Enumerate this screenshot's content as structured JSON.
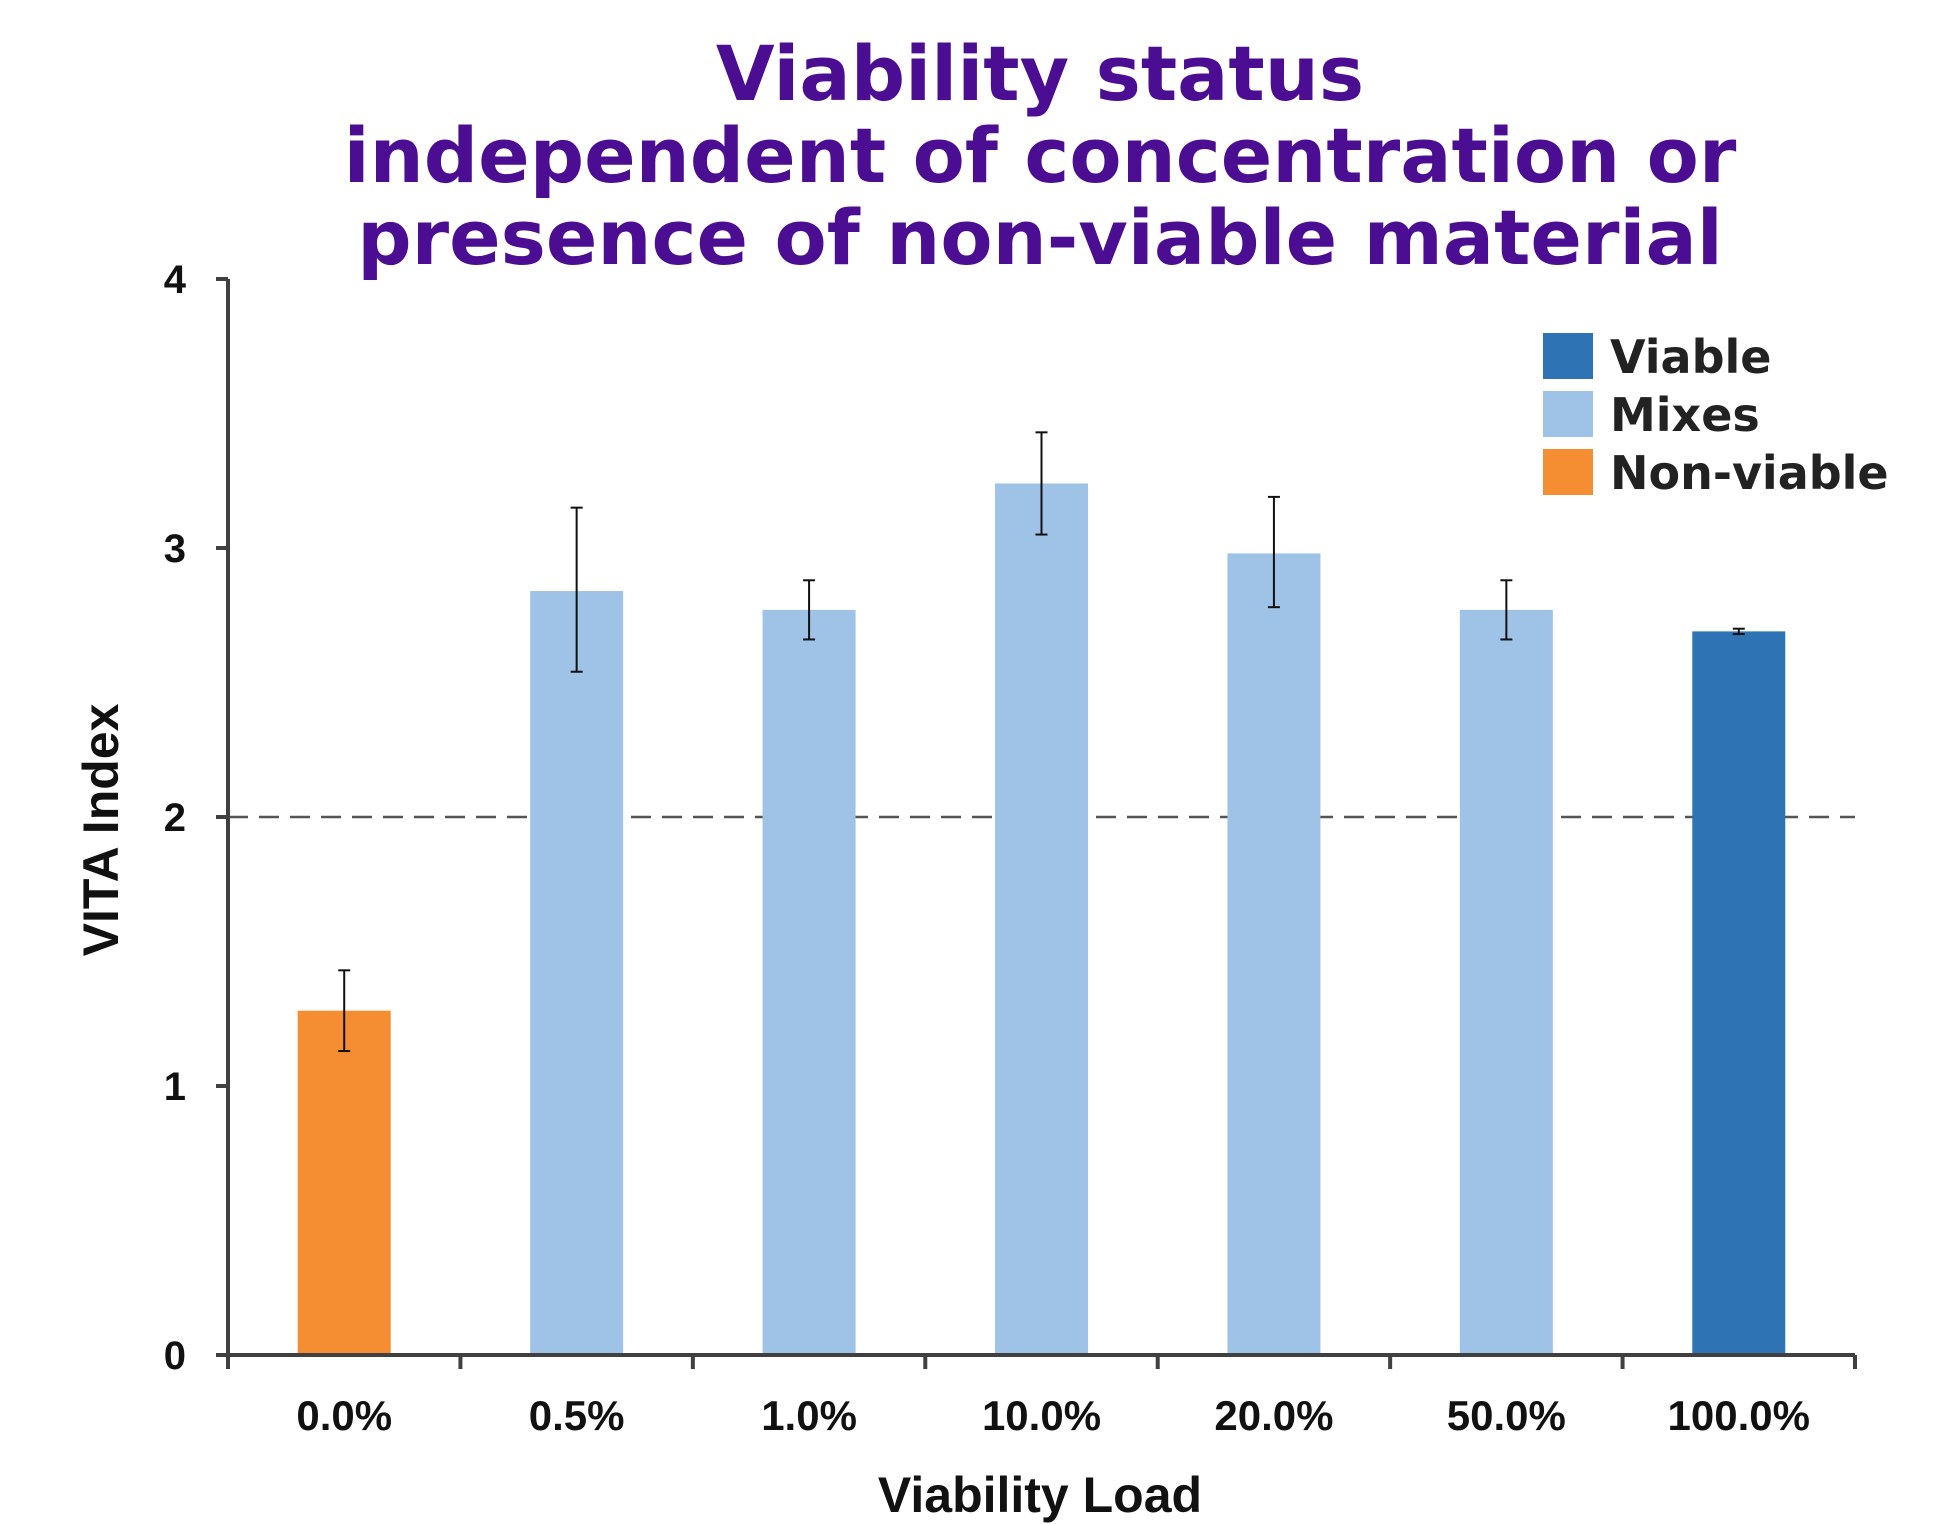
{
  "chart_data": {
    "type": "bar",
    "title_lines": [
      "Viability status",
      "independent of concentration or",
      "presence of non-viable material"
    ],
    "xlabel": "Viability Load",
    "ylabel": "VITA Index",
    "ylim": [
      0,
      4
    ],
    "yticks": [
      "0",
      "1",
      "2",
      "3",
      "4"
    ],
    "categories": [
      "0.0%",
      "0.5%",
      "1.0%",
      "10.0%",
      "20.0%",
      "50.0%",
      "100.0%"
    ],
    "values": [
      1.28,
      2.84,
      2.77,
      3.24,
      2.98,
      2.77,
      2.69
    ],
    "error_low": [
      1.13,
      2.54,
      2.66,
      3.05,
      2.78,
      2.66,
      2.68
    ],
    "error_high": [
      1.43,
      3.15,
      2.88,
      3.43,
      3.19,
      2.88,
      2.7
    ],
    "groups": [
      "Non-viable",
      "Mixes",
      "Mixes",
      "Mixes",
      "Mixes",
      "Mixes",
      "Viable"
    ],
    "threshold": 2,
    "grid": false,
    "legend_position": "top-right",
    "legend": [
      {
        "label": "Viable",
        "color": "#2e74b5"
      },
      {
        "label": "Mixes",
        "color": "#9fc3e6"
      },
      {
        "label": "Non-viable",
        "color": "#f58d33"
      }
    ],
    "colors": {
      "Viable": "#2e74b5",
      "Mixes": "#9fc3e6",
      "Non-viable": "#f58d33",
      "title": "#4b0d91"
    }
  }
}
